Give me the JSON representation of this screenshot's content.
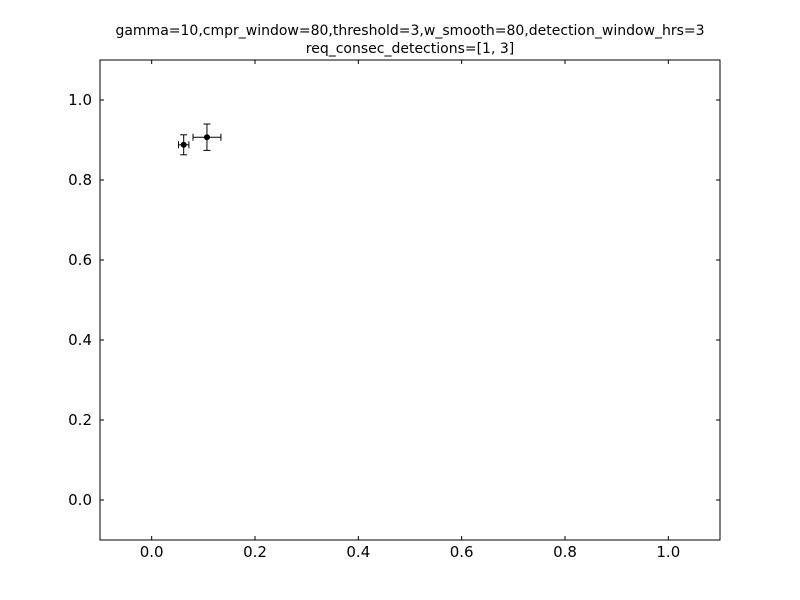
{
  "chart_data": {
    "type": "scatter",
    "title_lines": [
      "gamma=10,cmpr_window=80,threshold=3,w_smooth=80,detection_window_hrs=3",
      "req_consec_detections=[1, 3]"
    ],
    "xlabel": "",
    "ylabel": "",
    "xlim": [
      -0.1,
      1.1
    ],
    "ylim": [
      -0.1,
      1.1
    ],
    "xticks": [
      0.0,
      0.2,
      0.4,
      0.6,
      0.8,
      1.0
    ],
    "yticks": [
      0.0,
      0.2,
      0.4,
      0.6,
      0.8,
      1.0
    ],
    "xtick_labels": [
      "0.0",
      "0.2",
      "0.4",
      "0.6",
      "0.8",
      "1.0"
    ],
    "ytick_labels": [
      "0.0",
      "0.2",
      "0.4",
      "0.6",
      "0.8",
      "1.0"
    ],
    "grid": false,
    "series": [
      {
        "marker_color": "#000000",
        "points": [
          {
            "x": 0.062,
            "y": 0.888,
            "xerr": 0.01,
            "yerr": 0.025
          },
          {
            "x": 0.107,
            "y": 0.907,
            "xerr": 0.027,
            "yerr": 0.033
          }
        ]
      }
    ]
  }
}
